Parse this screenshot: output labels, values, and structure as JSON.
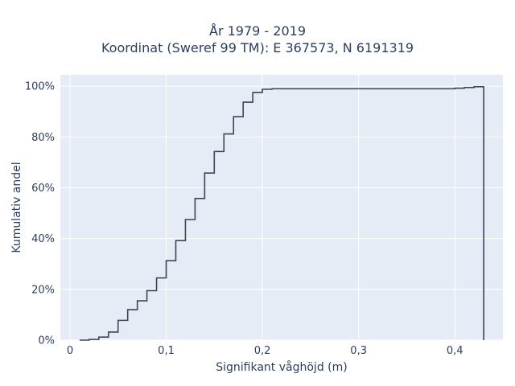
{
  "chart_data": {
    "type": "line",
    "title_line1": "År 1979 - 2019",
    "title_line2": "Koordinat (Sweref 99 TM): E 367573, N 6191319",
    "xlabel": "Signifikant våghöjd (m)",
    "ylabel": "Kumulativ andel",
    "xlim": [
      -0.01,
      0.45
    ],
    "ylim": [
      0,
      1.045
    ],
    "x_ticks": [
      {
        "value": 0,
        "label": "0"
      },
      {
        "value": 0.1,
        "label": "0,1"
      },
      {
        "value": 0.2,
        "label": "0,2"
      },
      {
        "value": 0.3,
        "label": "0,3"
      },
      {
        "value": 0.4,
        "label": "0,4"
      }
    ],
    "y_ticks": [
      {
        "value": 0,
        "label": "0%"
      },
      {
        "value": 0.2,
        "label": "20%"
      },
      {
        "value": 0.4,
        "label": "40%"
      },
      {
        "value": 0.6,
        "label": "60%"
      },
      {
        "value": 0.8,
        "label": "80%"
      },
      {
        "value": 1.0,
        "label": "100%"
      }
    ],
    "grid": true,
    "series": [
      {
        "color": "#3a4556",
        "line_shape": "step",
        "points": [
          [
            0.01,
            0.0
          ],
          [
            0.02,
            0.003
          ],
          [
            0.03,
            0.012
          ],
          [
            0.04,
            0.032
          ],
          [
            0.05,
            0.078
          ],
          [
            0.06,
            0.12
          ],
          [
            0.07,
            0.155
          ],
          [
            0.08,
            0.195
          ],
          [
            0.09,
            0.245
          ],
          [
            0.1,
            0.313
          ],
          [
            0.11,
            0.392
          ],
          [
            0.12,
            0.475
          ],
          [
            0.13,
            0.558
          ],
          [
            0.14,
            0.658
          ],
          [
            0.15,
            0.743
          ],
          [
            0.16,
            0.812
          ],
          [
            0.17,
            0.88
          ],
          [
            0.18,
            0.937
          ],
          [
            0.19,
            0.975
          ],
          [
            0.2,
            0.988
          ],
          [
            0.21,
            0.99
          ],
          [
            0.4,
            0.992
          ],
          [
            0.41,
            0.995
          ],
          [
            0.42,
            0.998
          ],
          [
            0.43,
            0.0
          ]
        ]
      }
    ]
  },
  "colors": {
    "plot_background": "#e5ecf6",
    "grid": "#ffffff",
    "line": "#3a4556",
    "text": "#2a3f5f"
  }
}
